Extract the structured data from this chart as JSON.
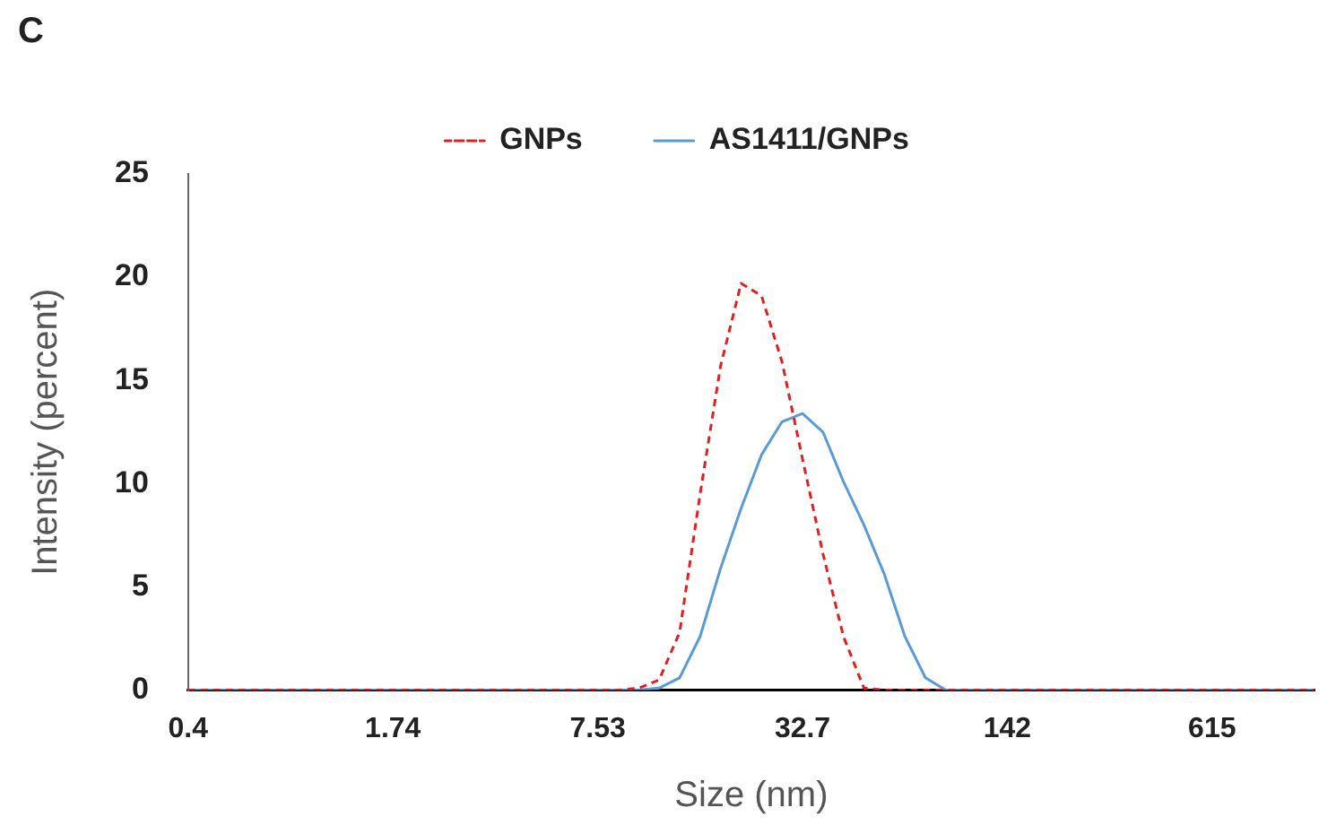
{
  "chart_data": {
    "type": "line",
    "title": "C",
    "xlabel": "Size (nm)",
    "ylabel": "Intensity (percent)",
    "categories": [
      "0.4",
      null,
      null,
      null,
      null,
      null,
      null,
      null,
      null,
      null,
      "1.74",
      null,
      null,
      null,
      null,
      null,
      null,
      null,
      null,
      null,
      "7.53",
      null,
      null,
      null,
      null,
      null,
      null,
      null,
      null,
      null,
      "32.7",
      null,
      null,
      null,
      null,
      null,
      null,
      null,
      null,
      null,
      "142",
      null,
      null,
      null,
      null,
      null,
      null,
      null,
      null,
      null,
      "615",
      null,
      null,
      null,
      null,
      null
    ],
    "series": [
      {
        "name": "GNPs",
        "color": "#e02020",
        "line_style": "dashed",
        "values": [
          0,
          0,
          0,
          0,
          0,
          0,
          0,
          0,
          0,
          0,
          0,
          0,
          0,
          0,
          0,
          0,
          0,
          0,
          0,
          0,
          0,
          0,
          0.1,
          0.5,
          2.8,
          9.5,
          15.7,
          19.7,
          19.1,
          15.9,
          11.2,
          6.6,
          2.6,
          0.1,
          0,
          0,
          0,
          0,
          0,
          0,
          0,
          0,
          0,
          0,
          0,
          0,
          0,
          0,
          0,
          0,
          0,
          0,
          0,
          0,
          0,
          0
        ]
      },
      {
        "name": "AS1411/GNPs",
        "color": "#5b9bd5",
        "line_style": "solid",
        "values": [
          0,
          0,
          0,
          0,
          0,
          0,
          0,
          0,
          0,
          0,
          0,
          0,
          0,
          0,
          0,
          0,
          0,
          0,
          0,
          0,
          0,
          0,
          0,
          0.1,
          0.6,
          2.6,
          5.9,
          8.8,
          11.4,
          13.0,
          13.4,
          12.5,
          10.1,
          8.0,
          5.6,
          2.6,
          0.6,
          0,
          0,
          0,
          0,
          0,
          0,
          0,
          0,
          0,
          0,
          0,
          0,
          0,
          0,
          0,
          0,
          0,
          0,
          0
        ]
      }
    ],
    "ylim": [
      0,
      25
    ],
    "yticks": [
      0,
      5,
      10,
      15,
      20,
      25
    ],
    "grid": false,
    "legend": "top",
    "marker": "none"
  }
}
